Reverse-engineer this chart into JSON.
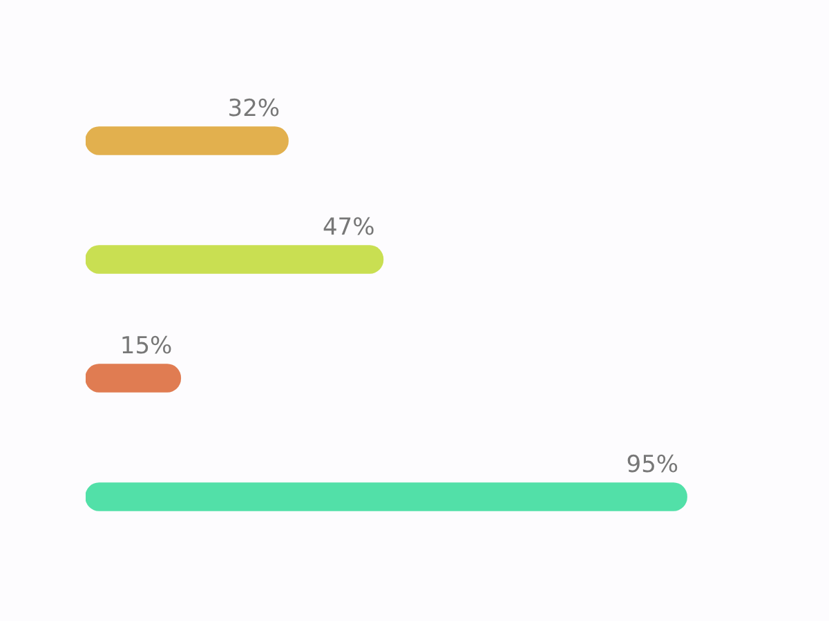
{
  "chart_data": {
    "type": "bar",
    "orientation": "horizontal",
    "categories": [
      null,
      null,
      null,
      null
    ],
    "values": [
      32,
      47,
      15,
      95
    ],
    "value_labels": [
      "32%",
      "47%",
      "15%",
      "95%"
    ],
    "colors": [
      "#e2b04e",
      "#c9df52",
      "#e07c52",
      "#52e0a8"
    ],
    "legend": false
  }
}
